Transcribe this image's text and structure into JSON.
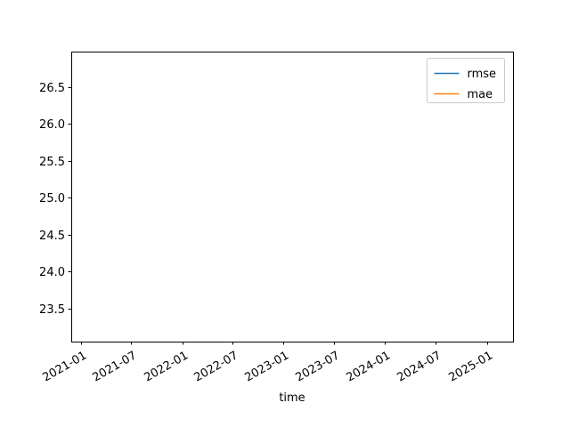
{
  "chart_data": {
    "type": "line",
    "xlabel": "time",
    "ylabel": "",
    "x_axis": {
      "kind": "date",
      "range": [
        "2020-11-28",
        "2025-04-05"
      ],
      "ticks": [
        "2021-01",
        "2021-07",
        "2022-01",
        "2022-07",
        "2023-01",
        "2023-07",
        "2024-01",
        "2024-07",
        "2025-01"
      ]
    },
    "y_axis": {
      "range": [
        23.05,
        26.98
      ],
      "ticks": [
        "23.5",
        "24.0",
        "24.5",
        "25.0",
        "25.5",
        "26.0",
        "26.5"
      ]
    },
    "grid": false,
    "legend_position": "top-right",
    "series": [
      {
        "name": "rmse",
        "color": "#1f77b4",
        "points": []
      },
      {
        "name": "mae",
        "color": "#ff7f0e",
        "points": []
      }
    ]
  }
}
